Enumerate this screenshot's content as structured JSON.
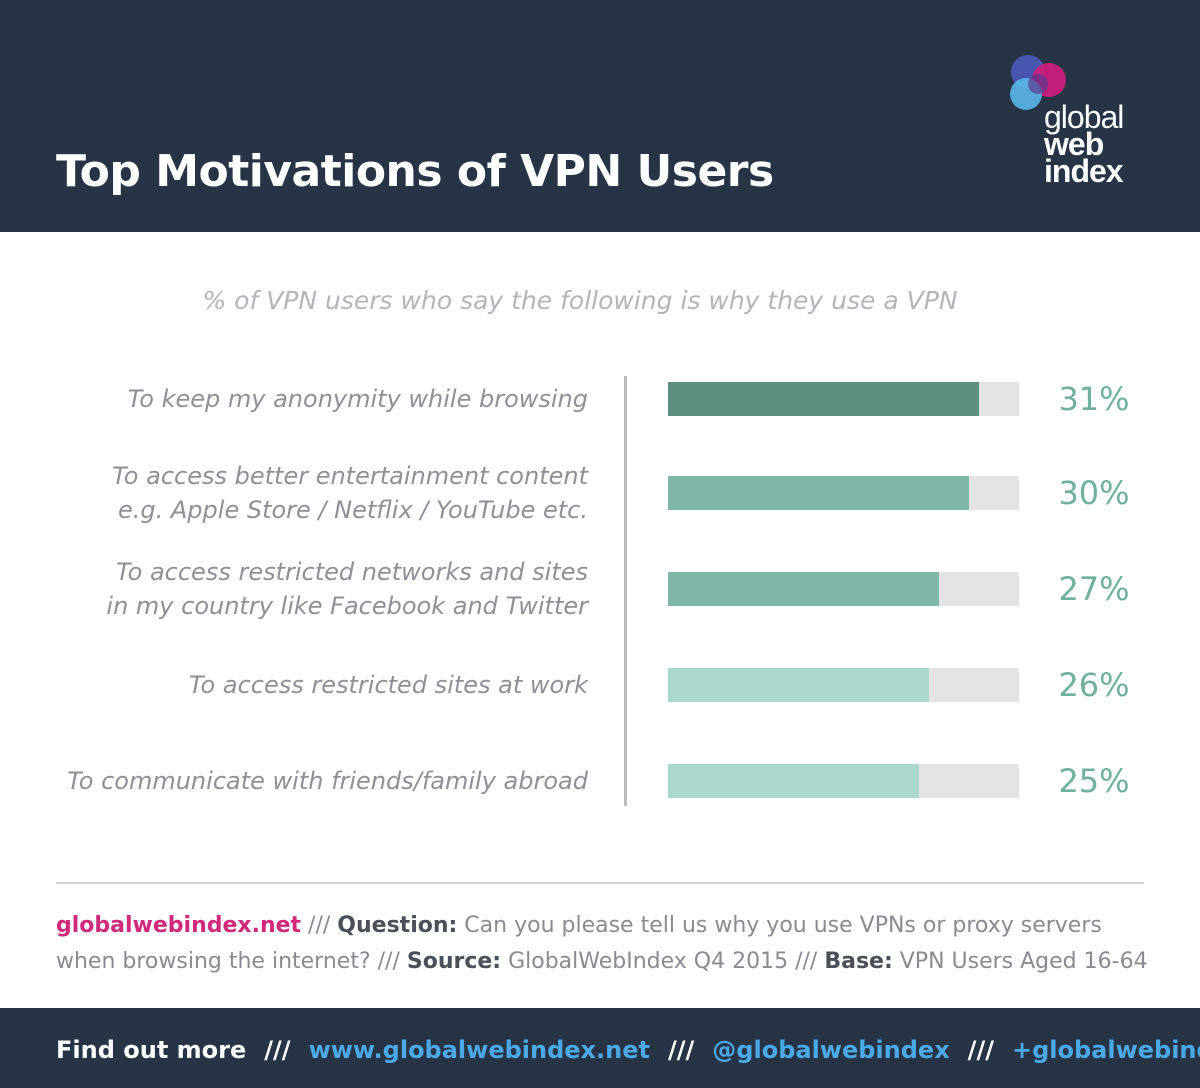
{
  "header": {
    "title": "Top Motivations of VPN Users",
    "logo": {
      "line1": "global",
      "line2": "web",
      "line3": "index"
    }
  },
  "chart_data": {
    "type": "bar",
    "orientation": "horizontal",
    "title": "% of VPN users who say the following is why they use a VPN",
    "categories": [
      "To keep my anonymity while browsing",
      "To access better entertainment content\ne.g. Apple Store / Netflix / YouTube etc.",
      "To access restricted networks and sites\nin my country like Facebook and Twitter",
      "To access restricted sites at work",
      "To communicate with friends/family abroad"
    ],
    "values": [
      31,
      30,
      27,
      26,
      25
    ],
    "value_labels": [
      "31%",
      "30%",
      "27%",
      "26%",
      "25%"
    ],
    "bar_colors": [
      "#5c8f80",
      "#7fb8a9",
      "#7fb8a9",
      "#aad8cc",
      "#aad8cc"
    ],
    "track_color": "#e4e4e4",
    "xlim": [
      0,
      35
    ],
    "unit": "%"
  },
  "footnote": {
    "site": "globalwebindex.net",
    "sep": " /// ",
    "question_label": "Question:",
    "question_text": "  Can you please tell us why you use VPNs or proxy servers when browsing the internet?",
    "source_label": "Source:",
    "source_text": " GlobalWebIndex Q4 2015",
    "base_label": "Base:",
    "base_text": " VPN Users Aged 16-64"
  },
  "footer": {
    "find_out_more": "Find out more",
    "separator": "///",
    "website": "www.globalwebindex.net",
    "twitter": "@globalwebindex",
    "gplus": "+globalwebindex"
  }
}
